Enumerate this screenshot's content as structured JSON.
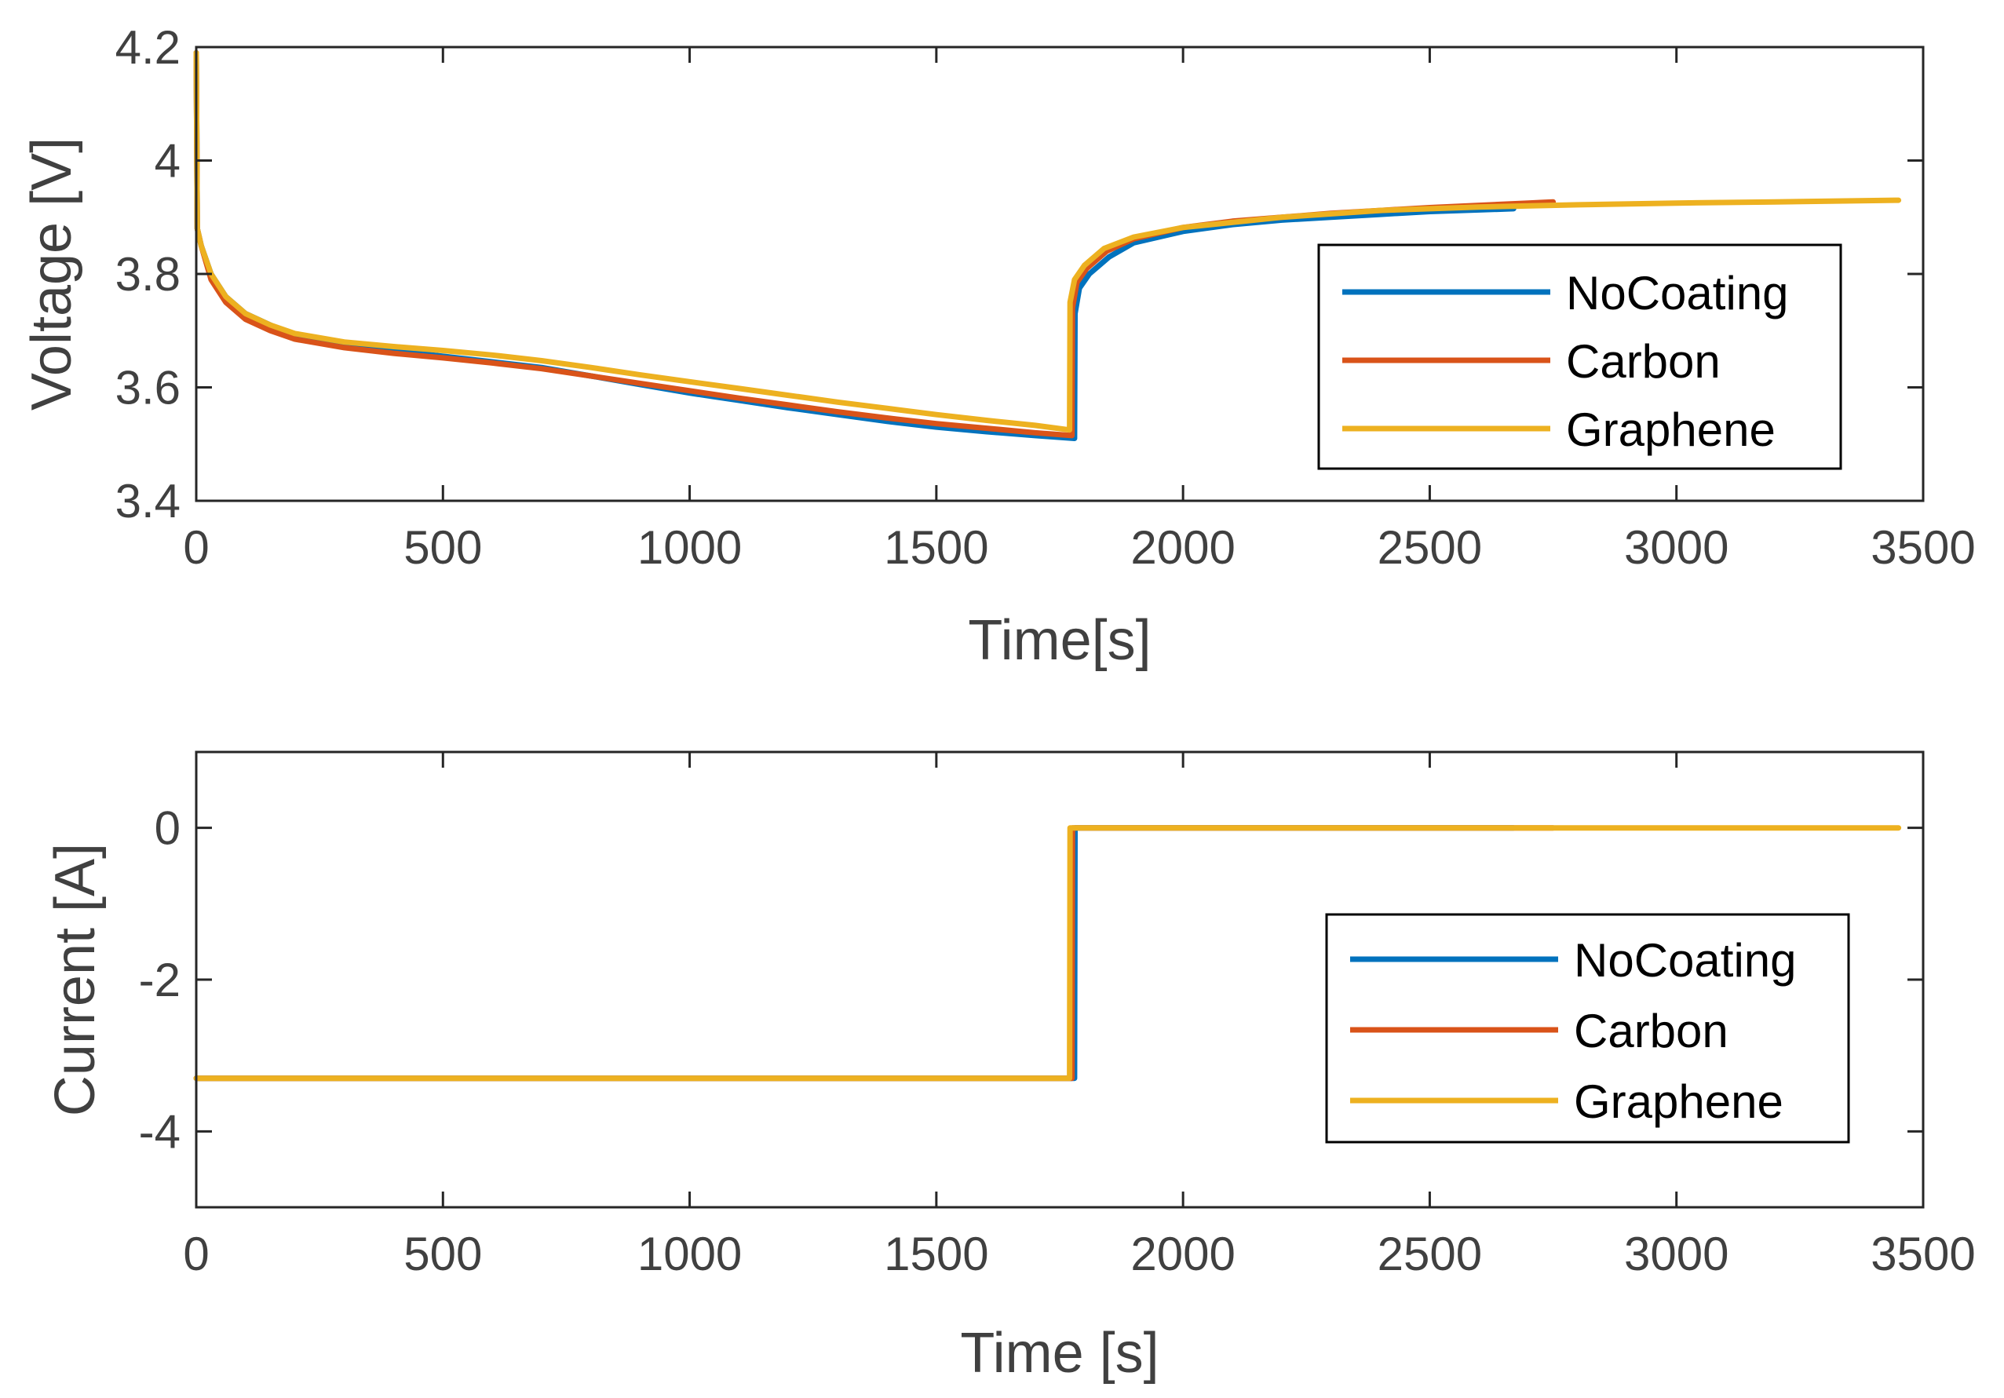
{
  "colors": {
    "NoCoating": "#0072BD",
    "Carbon": "#D95319",
    "Graphene": "#EDB120"
  },
  "chart_data": [
    {
      "type": "line",
      "title": "",
      "xlabel": "Time[s]",
      "ylabel": "Voltage [V]",
      "xlim": [
        0,
        3500
      ],
      "ylim": [
        3.4,
        4.2
      ],
      "xticks": [
        0,
        500,
        1000,
        1500,
        2000,
        2500,
        3000,
        3500
      ],
      "xtick_labels": [
        "0",
        "500",
        "1000",
        "1500",
        "2000",
        "2500",
        "3000",
        "3500"
      ],
      "yticks": [
        3.4,
        3.6,
        3.8,
        4.0,
        4.2
      ],
      "ytick_labels": [
        "3.4",
        "3.6",
        "3.8",
        "4",
        "4.2"
      ],
      "legend": [
        "NoCoating",
        "Carbon",
        "Graphene"
      ],
      "legend_position": "right",
      "series": [
        {
          "name": "NoCoating",
          "x": [
            0,
            2,
            10,
            30,
            60,
            100,
            150,
            200,
            300,
            400,
            500,
            600,
            700,
            800,
            900,
            1000,
            1100,
            1200,
            1300,
            1400,
            1500,
            1600,
            1700,
            1780,
            1781,
            1790,
            1810,
            1850,
            1900,
            2000,
            2100,
            2200,
            2300,
            2400,
            2500,
            2600,
            2670
          ],
          "y": [
            4.19,
            3.88,
            3.85,
            3.8,
            3.76,
            3.73,
            3.71,
            3.69,
            3.675,
            3.665,
            3.655,
            3.645,
            3.635,
            3.62,
            3.605,
            3.59,
            3.577,
            3.564,
            3.552,
            3.54,
            3.53,
            3.522,
            3.515,
            3.51,
            3.73,
            3.775,
            3.8,
            3.83,
            3.855,
            3.875,
            3.887,
            3.895,
            3.9,
            3.905,
            3.91,
            3.913,
            3.915
          ]
        },
        {
          "name": "Carbon",
          "x": [
            0,
            2,
            10,
            30,
            60,
            100,
            150,
            200,
            300,
            400,
            500,
            600,
            700,
            800,
            900,
            1000,
            1100,
            1200,
            1300,
            1400,
            1500,
            1600,
            1700,
            1775,
            1776,
            1785,
            1805,
            1845,
            1900,
            2000,
            2100,
            2200,
            2300,
            2400,
            2500,
            2600,
            2700,
            2750
          ],
          "y": [
            4.19,
            3.88,
            3.85,
            3.79,
            3.75,
            3.72,
            3.7,
            3.685,
            3.67,
            3.66,
            3.652,
            3.643,
            3.633,
            3.62,
            3.607,
            3.594,
            3.581,
            3.569,
            3.557,
            3.546,
            3.536,
            3.528,
            3.52,
            3.515,
            3.74,
            3.785,
            3.81,
            3.84,
            3.862,
            3.882,
            3.893,
            3.9,
            3.907,
            3.912,
            3.917,
            3.921,
            3.925,
            3.927
          ]
        },
        {
          "name": "Graphene",
          "x": [
            0,
            2,
            10,
            30,
            60,
            100,
            150,
            200,
            300,
            400,
            500,
            600,
            700,
            800,
            900,
            1000,
            1100,
            1200,
            1300,
            1400,
            1500,
            1600,
            1700,
            1770,
            1771,
            1780,
            1800,
            1840,
            1900,
            2000,
            2200,
            2400,
            2600,
            2800,
            3000,
            3200,
            3450
          ],
          "y": [
            4.19,
            3.88,
            3.85,
            3.8,
            3.76,
            3.73,
            3.71,
            3.695,
            3.68,
            3.672,
            3.665,
            3.657,
            3.647,
            3.635,
            3.622,
            3.61,
            3.598,
            3.586,
            3.574,
            3.563,
            3.552,
            3.542,
            3.533,
            3.525,
            3.75,
            3.79,
            3.815,
            3.845,
            3.865,
            3.882,
            3.9,
            3.912,
            3.918,
            3.922,
            3.925,
            3.927,
            3.93
          ]
        }
      ]
    },
    {
      "type": "line",
      "title": "",
      "xlabel": "Time [s]",
      "ylabel": "Current [A]",
      "xlim": [
        0,
        3500
      ],
      "ylim": [
        -5,
        1
      ],
      "xticks": [
        0,
        500,
        1000,
        1500,
        2000,
        2500,
        3000,
        3500
      ],
      "xtick_labels": [
        "0",
        "500",
        "1000",
        "1500",
        "2000",
        "2500",
        "3000",
        "3500"
      ],
      "yticks": [
        -4,
        -2,
        0
      ],
      "ytick_labels": [
        "-4",
        "-2",
        "0"
      ],
      "legend": [
        "NoCoating",
        "Carbon",
        "Graphene"
      ],
      "legend_position": "right",
      "series": [
        {
          "name": "NoCoating",
          "x": [
            0,
            1780,
            1781,
            2670
          ],
          "y": [
            -3.3,
            -3.3,
            0,
            0
          ]
        },
        {
          "name": "Carbon",
          "x": [
            0,
            1775,
            1776,
            2750
          ],
          "y": [
            -3.3,
            -3.3,
            0,
            0
          ]
        },
        {
          "name": "Graphene",
          "x": [
            0,
            1770,
            1771,
            3450
          ],
          "y": [
            -3.3,
            -3.3,
            0,
            0
          ]
        }
      ]
    }
  ]
}
